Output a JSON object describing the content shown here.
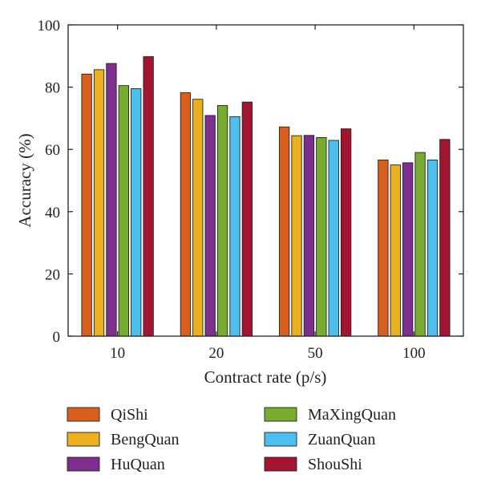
{
  "chart_data": {
    "type": "bar",
    "title": "",
    "xlabel": "Contract rate (p/s)",
    "ylabel": "Accuracy (%)",
    "ylim": [
      0,
      100
    ],
    "yticks": [
      0,
      20,
      40,
      60,
      80,
      100
    ],
    "grid": false,
    "legend_position": "bottom",
    "categories": [
      "10",
      "20",
      "50",
      "100"
    ],
    "series": [
      {
        "name": "QiShi",
        "color": "#d95f1d",
        "values": [
          84.2,
          78.2,
          67.2,
          56.6
        ]
      },
      {
        "name": "BengQuan",
        "color": "#ebb020",
        "values": [
          85.6,
          76.1,
          64.4,
          55.0
        ]
      },
      {
        "name": "HuQuan",
        "color": "#7e2f8e",
        "values": [
          87.6,
          70.9,
          64.5,
          55.7
        ]
      },
      {
        "name": "MaXingQuan",
        "color": "#77ac30",
        "values": [
          80.5,
          74.1,
          63.8,
          59.0
        ]
      },
      {
        "name": "ZuanQuan",
        "color": "#4dbeee",
        "values": [
          79.5,
          70.5,
          62.9,
          56.6
        ]
      },
      {
        "name": "ShouShi",
        "color": "#a2142f",
        "values": [
          89.8,
          75.2,
          66.6,
          63.2
        ]
      }
    ]
  }
}
